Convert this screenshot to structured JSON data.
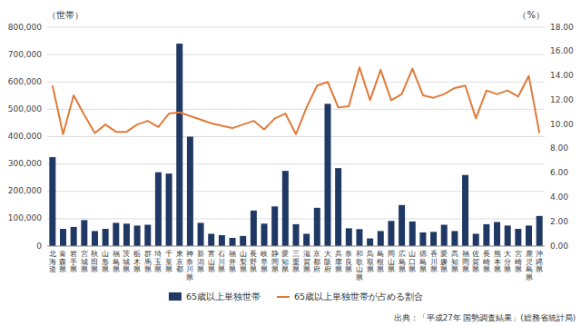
{
  "chart_data": {
    "type": "bar",
    "categories": [
      "北海道",
      "青森県",
      "岩手県",
      "宮城県",
      "秋田県",
      "山形県",
      "福島県",
      "茨城県",
      "栃木県",
      "群馬県",
      "埼玉県",
      "千葉県",
      "東京都",
      "神奈川県",
      "新潟県",
      "富山県",
      "石川県",
      "福井県",
      "山梨県",
      "長野県",
      "岐阜県",
      "静岡県",
      "愛知県",
      "三重県",
      "滋賀県",
      "京都府",
      "大阪府",
      "兵庫県",
      "奈良県",
      "和歌山県",
      "鳥取県",
      "島根県",
      "岡山県",
      "広島県",
      "山口県",
      "徳島県",
      "香川県",
      "愛媛県",
      "高知県",
      "福岡県",
      "佐賀県",
      "長崎県",
      "熊本県",
      "大分県",
      "宮崎県",
      "鹿児島県",
      "沖縄県"
    ],
    "series": [
      {
        "name": "65歳以上単独世帯",
        "type": "bar",
        "color": "#1f3864",
        "values": [
          325000,
          63000,
          70000,
          95000,
          55000,
          63000,
          85000,
          82000,
          75000,
          78000,
          270000,
          265000,
          740000,
          400000,
          85000,
          45000,
          40000,
          30000,
          37000,
          130000,
          82000,
          145000,
          275000,
          80000,
          45000,
          140000,
          520000,
          285000,
          65000,
          62000,
          28000,
          55000,
          92000,
          150000,
          90000,
          50000,
          52000,
          78000,
          55000,
          260000,
          45000,
          80000,
          88000,
          75000,
          63000,
          75000,
          110000
        ]
      },
      {
        "name": "65歳以上単独世帯が占める割合",
        "type": "line",
        "color": "#e07b39",
        "axis": "y2",
        "values": [
          13.2,
          9.2,
          12.4,
          10.8,
          9.3,
          10.0,
          9.4,
          9.4,
          10.0,
          10.3,
          9.8,
          10.9,
          11.0,
          10.7,
          10.4,
          10.1,
          9.9,
          9.7,
          10.0,
          10.3,
          9.6,
          10.5,
          10.9,
          9.2,
          11.4,
          13.2,
          13.5,
          11.4,
          11.5,
          14.7,
          12.0,
          14.5,
          12.0,
          12.5,
          14.6,
          12.4,
          12.2,
          12.5,
          13.0,
          13.2,
          10.5,
          12.8,
          12.5,
          12.8,
          12.3,
          14.0,
          9.3
        ]
      }
    ],
    "ylabel": "（世帯）",
    "y2label": "（%）",
    "ylim": [
      0,
      800000
    ],
    "yticks": [
      0,
      {
        "value": 100000,
        "label": "100,000"
      },
      {
        "value": 200000,
        "label": "200,000"
      },
      {
        "value": 300000,
        "label": "300,000"
      },
      {
        "value": 400000,
        "label": "400,000"
      },
      {
        "value": 500000,
        "label": "500,000"
      },
      {
        "value": 600000,
        "label": "600,000"
      },
      {
        "value": 700000,
        "label": "700,000"
      },
      {
        "value": 800000,
        "label": "800,000"
      }
    ],
    "y2lim": [
      0,
      18.0
    ],
    "y2ticks": [
      {
        "value": 0,
        "label": "0.00"
      },
      {
        "value": 2,
        "label": "2.00"
      },
      {
        "value": 4,
        "label": "4.00"
      },
      {
        "value": 6,
        "label": "6.00"
      },
      {
        "value": 8,
        "label": "8.00"
      },
      {
        "value": 10,
        "label": "10.00"
      },
      {
        "value": 12,
        "label": "12.00"
      },
      {
        "value": 14,
        "label": "14.00"
      },
      {
        "value": 16,
        "label": "16.00"
      },
      {
        "value": 18,
        "label": "18.00"
      }
    ],
    "grid": true,
    "legend": "bottom",
    "annotations": [
      "出典：「平成27年 国勢調査結果」(総務省統計局)"
    ]
  }
}
